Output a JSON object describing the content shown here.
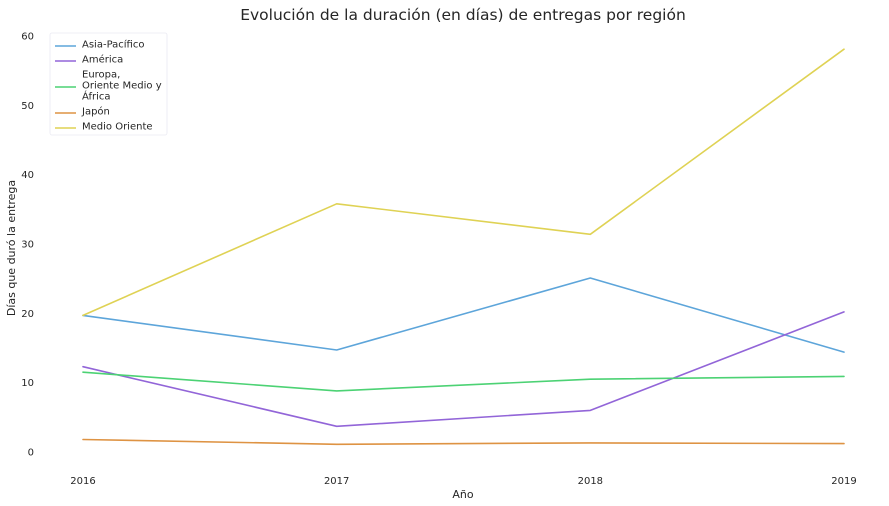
{
  "chart_data": {
    "type": "line",
    "title": "Evolución de la duración (en días) de entregas por región",
    "xlabel": "Año",
    "ylabel": "Días que duró la entrega",
    "x": [
      "2016",
      "2017",
      "2018",
      "2019"
    ],
    "yticks": [
      "0",
      "10",
      "20",
      "30",
      "40",
      "50",
      "60"
    ],
    "ylim": [
      -3.5,
      63.5
    ],
    "grid": false,
    "legend": "top-left",
    "series": [
      {
        "name": "Asia-Pacífico",
        "color": "#5da5da",
        "values": [
          19.7,
          14.7,
          25.1,
          14.4
        ]
      },
      {
        "name": "América",
        "color": "#9265d8",
        "values": [
          12.3,
          3.7,
          6.0,
          20.2
        ]
      },
      {
        "name": "Europa, Oriente Medio y África",
        "legend_lines": [
          "Europa,",
          "Oriente Medio y",
          "África"
        ],
        "color": "#4cd274",
        "values": [
          11.5,
          8.8,
          10.5,
          10.9
        ]
      },
      {
        "name": "Japón",
        "color": "#de9343",
        "values": [
          1.8,
          1.1,
          1.3,
          1.2
        ]
      },
      {
        "name": "Medio Oriente",
        "color": "#dfd254",
        "values": [
          19.7,
          35.8,
          31.4,
          58.1
        ]
      }
    ]
  }
}
